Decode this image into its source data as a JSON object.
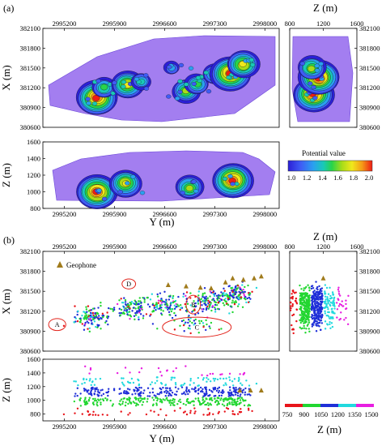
{
  "figure": {
    "panel_labels": [
      "(a)",
      "(b)"
    ],
    "legend_title": "Potential value",
    "geophone_label": "Geophone",
    "region_labels": [
      "A",
      "B",
      "C",
      "D"
    ],
    "colorbar_a_ticks": [
      "1.0",
      "1.2",
      "1.4",
      "1.6",
      "1.8",
      "2.0"
    ],
    "colorbar_b_ticks": [
      "750",
      "900",
      "1050",
      "1200",
      "1350",
      "1500"
    ],
    "colorbar_b_label": "Z (m)"
  },
  "colors": {
    "background_fill": "#a37ef0",
    "potential_scale": [
      "#2b1fd6",
      "#3f5cf5",
      "#2aa0f0",
      "#19c9b6",
      "#28d44a",
      "#a8dc18",
      "#f0e81c",
      "#f59a16",
      "#ee1c14"
    ],
    "depth_scale": [
      "#e8141a",
      "#22d631",
      "#1f2fd8",
      "#22d9de",
      "#e81ee1"
    ],
    "geophone": "#a07b1c",
    "ellipse": "#e2231a"
  },
  "chart_data": [
    {
      "type": "heatmap",
      "panel": "(a) map view",
      "xlabel": "",
      "ylabel": "X (m)",
      "xlim": [
        2994900,
        2998200
      ],
      "ylim": [
        380600,
        382100
      ],
      "x_ticks": [
        "2995200",
        "2995900",
        "2996600",
        "2997300",
        "2998000"
      ],
      "y_ticks": [
        "380600",
        "380900",
        "381200",
        "381500",
        "381800",
        "382100"
      ],
      "hotspots": [
        {
          "x": 2995650,
          "y": 381050,
          "value": 2.0
        },
        {
          "x": 2995750,
          "y": 381200,
          "value": 1.5
        },
        {
          "x": 2996080,
          "y": 381250,
          "value": 1.8
        },
        {
          "x": 2996280,
          "y": 381300,
          "value": 1.4
        },
        {
          "x": 2996900,
          "y": 381150,
          "value": 1.6
        },
        {
          "x": 2997050,
          "y": 381250,
          "value": 1.5
        },
        {
          "x": 2997300,
          "y": 381400,
          "value": 1.5
        },
        {
          "x": 2997520,
          "y": 381420,
          "value": 2.0
        },
        {
          "x": 2997700,
          "y": 381550,
          "value": 1.7
        },
        {
          "x": 2996700,
          "y": 381500,
          "value": 1.3
        }
      ]
    },
    {
      "type": "heatmap",
      "panel": "(a) side view",
      "xlabel": "Z (m)",
      "ylabel": "",
      "xlim": [
        800,
        1600
      ],
      "ylim": [
        380600,
        382100
      ],
      "x_ticks": [
        "800",
        "1200",
        "1600"
      ],
      "y_ticks": [
        "380600",
        "380900",
        "381200",
        "381500",
        "381800",
        "382100"
      ],
      "hotspots": [
        {
          "x": 1080,
          "y": 381100,
          "value": 2.0
        },
        {
          "x": 1150,
          "y": 381350,
          "value": 2.0
        },
        {
          "x": 1060,
          "y": 381500,
          "value": 1.6
        }
      ]
    },
    {
      "type": "heatmap",
      "panel": "(a) section view",
      "xlabel": "Y (m)",
      "ylabel": "Z (m)",
      "xlim": [
        2994900,
        2998200
      ],
      "ylim": [
        800,
        1600
      ],
      "x_ticks": [
        "2995200",
        "2995900",
        "2996600",
        "2997300",
        "2998000"
      ],
      "y_ticks": [
        "800",
        "1000",
        "1200",
        "1400",
        "1600"
      ],
      "hotspots": [
        {
          "x": 2995650,
          "y": 1000,
          "value": 2.0
        },
        {
          "x": 2996050,
          "y": 1100,
          "value": 1.8
        },
        {
          "x": 2996950,
          "y": 1050,
          "value": 1.6
        },
        {
          "x": 2997550,
          "y": 1140,
          "value": 2.0
        }
      ]
    },
    {
      "type": "scatter",
      "panel": "(b) map view",
      "xlabel": "",
      "ylabel": "X (m)",
      "xlim": [
        2994900,
        2998200
      ],
      "ylim": [
        380600,
        382100
      ],
      "x_ticks": [
        "2995200",
        "2995900",
        "2996600",
        "2997300",
        "2998000"
      ],
      "y_ticks": [
        "380600",
        "380900",
        "381200",
        "381500",
        "381800",
        "382100"
      ],
      "clusters": [
        {
          "x": 2995600,
          "y": 381100,
          "sx": 200,
          "sy": 130,
          "n": 120
        },
        {
          "x": 2996100,
          "y": 381250,
          "sx": 230,
          "sy": 130,
          "n": 110
        },
        {
          "x": 2996600,
          "y": 381300,
          "sx": 300,
          "sy": 150,
          "n": 120
        },
        {
          "x": 2997200,
          "y": 381350,
          "sx": 250,
          "sy": 140,
          "n": 130
        },
        {
          "x": 2997600,
          "y": 381450,
          "sx": 180,
          "sy": 140,
          "n": 140
        },
        {
          "x": 2997000,
          "y": 381000,
          "sx": 250,
          "sy": 100,
          "n": 40
        }
      ],
      "geophones": [
        {
          "x": 2997550,
          "y": 381700
        },
        {
          "x": 2997700,
          "y": 381680
        },
        {
          "x": 2997850,
          "y": 381700
        },
        {
          "x": 2997950,
          "y": 381730
        },
        {
          "x": 2997450,
          "y": 381640
        },
        {
          "x": 2997250,
          "y": 381550
        },
        {
          "x": 2997100,
          "y": 381560
        },
        {
          "x": 2996900,
          "y": 381580
        },
        {
          "x": 2996650,
          "y": 381600
        }
      ],
      "ellipses": [
        {
          "label": "A",
          "x": 2995100,
          "y": 381000,
          "rx": 120,
          "ry": 90
        },
        {
          "label": "D",
          "x": 2996100,
          "y": 381610,
          "rx": 95,
          "ry": 75
        },
        {
          "label": "B",
          "x": 2997000,
          "y": 381300,
          "rx": 100,
          "ry": 140
        },
        {
          "label": "C",
          "x": 2997050,
          "y": 380960,
          "rx": 480,
          "ry": 150
        }
      ]
    },
    {
      "type": "scatter",
      "panel": "(b) side view",
      "xlabel": "Z (m)",
      "ylabel": "",
      "xlim": [
        800,
        1600
      ],
      "ylim": [
        380600,
        382100
      ],
      "x_ticks": [
        "800",
        "1200",
        "1600"
      ],
      "y_ticks": [
        "380600",
        "380900",
        "381200",
        "381500",
        "381800",
        "382100"
      ]
    },
    {
      "type": "scatter",
      "panel": "(b) section view",
      "xlabel": "Y (m)",
      "ylabel": "Z (m)",
      "xlim": [
        2994900,
        2998200
      ],
      "ylim": [
        700,
        1600
      ],
      "x_ticks": [
        "2995200",
        "2995900",
        "2996600",
        "2997300",
        "2998000"
      ],
      "y_ticks": [
        "800",
        "1000",
        "1200",
        "1400",
        "1600"
      ]
    }
  ]
}
